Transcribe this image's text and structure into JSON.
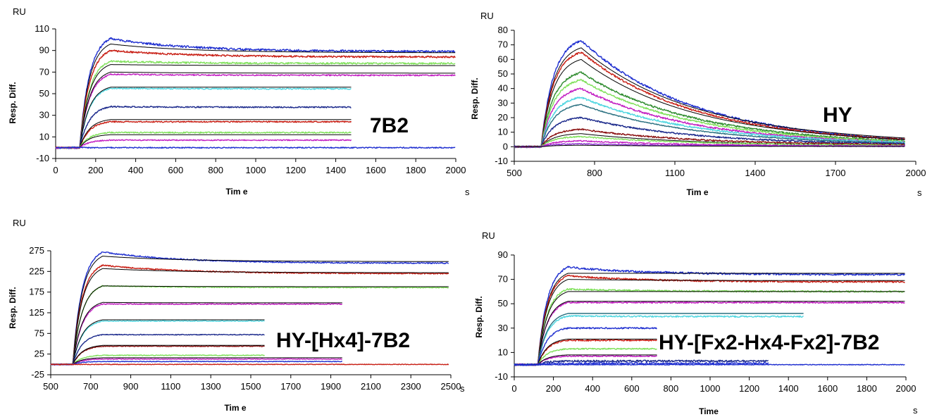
{
  "colors": {
    "blue": "#1f2fd0",
    "red": "#c81e14",
    "green": "#2e8b2e",
    "lime": "#7fe05a",
    "magenta": "#c21fc2",
    "cyan": "#4fd6e0",
    "navy": "#1c2a8c",
    "darkred": "#8a1010",
    "teal": "#2a7080",
    "violet": "#8a2ad0",
    "black": "#000000"
  },
  "chart_data": [
    {
      "type": "line",
      "title": "7B2",
      "xlabel": "Tim e",
      "ylabel": "Resp. Diff.",
      "yunit": "RU",
      "xunit": "s",
      "xlim": [
        0,
        2000
      ],
      "ylim": [
        -10,
        110
      ],
      "xticks": [
        0,
        200,
        400,
        600,
        800,
        1000,
        1200,
        1400,
        1600,
        1800,
        2000
      ],
      "yticks": [
        -10,
        10,
        30,
        50,
        70,
        90,
        110
      ],
      "inj_start": 120,
      "inj_end": 275,
      "baseline_start": 0,
      "series": [
        {
          "color": "#1f2fd0",
          "peak": 101,
          "end": 89,
          "end_x": 2000,
          "noise": 1.0
        },
        {
          "color": "#000000",
          "peak": 96,
          "end": 88,
          "end_x": 2000,
          "noise": 0
        },
        {
          "color": "#c81e14",
          "peak": 90,
          "end": 84,
          "end_x": 2000,
          "noise": 0.8
        },
        {
          "color": "#7fe05a",
          "peak": 80,
          "end": 78,
          "end_x": 2000,
          "noise": 0.8
        },
        {
          "color": "#000000",
          "peak": 77,
          "end": 76,
          "end_x": 2000,
          "noise": 0
        },
        {
          "color": "#c21fc2",
          "peak": 68,
          "end": 67,
          "end_x": 2000,
          "noise": 0.6
        },
        {
          "color": "#000000",
          "peak": 70,
          "end": 69,
          "end_x": 2000,
          "noise": 0
        },
        {
          "color": "#4fd6e0",
          "peak": 55,
          "end": 54.5,
          "end_x": 1480,
          "noise": 0.6
        },
        {
          "color": "#000000",
          "peak": 56,
          "end": 56,
          "end_x": 1480,
          "noise": 0
        },
        {
          "color": "#1c2a8c",
          "peak": 38,
          "end": 37.5,
          "end_x": 1480,
          "noise": 0.6
        },
        {
          "color": "#c81e14",
          "peak": 24,
          "end": 24,
          "end_x": 1480,
          "noise": 0.6
        },
        {
          "color": "#000000",
          "peak": 26,
          "end": 26,
          "end_x": 1480,
          "noise": 0
        },
        {
          "color": "#7fe05a",
          "peak": 14,
          "end": 14,
          "end_x": 1480,
          "noise": 0.6
        },
        {
          "color": "#000000",
          "peak": 12,
          "end": 12,
          "end_x": 1480,
          "noise": 0
        },
        {
          "color": "#c21fc2",
          "peak": 7,
          "end": 7,
          "end_x": 1480,
          "noise": 0.5
        },
        {
          "color": "#1f2fd0",
          "peak": 0,
          "end": 0,
          "end_x": 2000,
          "noise": 0.5
        }
      ]
    },
    {
      "type": "line",
      "title": "HY",
      "xlabel": "Tim e",
      "ylabel": "Resp. Diff.",
      "yunit": "RU",
      "xunit": "s",
      "xlim": [
        500,
        2000
      ],
      "ylim": [
        -10,
        80
      ],
      "xticks": [
        500,
        800,
        1100,
        1400,
        1700,
        2000
      ],
      "yticks": [
        -10,
        0,
        10,
        20,
        30,
        40,
        50,
        60,
        70,
        80
      ],
      "inj_start": 600,
      "inj_end": 750,
      "baseline_start": 500,
      "series": [
        {
          "color": "#1f2fd0",
          "peak": 73,
          "end": 5,
          "end_x": 1960,
          "noise": 0.7
        },
        {
          "color": "#000000",
          "peak": 68,
          "end": 6,
          "end_x": 1960,
          "noise": 0
        },
        {
          "color": "#c81e14",
          "peak": 65,
          "end": 5,
          "end_x": 1960,
          "noise": 0.6
        },
        {
          "color": "#000000",
          "peak": 60,
          "end": 5,
          "end_x": 1960,
          "noise": 0
        },
        {
          "color": "#2e8b2e",
          "peak": 51,
          "end": 4,
          "end_x": 1960,
          "noise": 0.6
        },
        {
          "color": "#7fe05a",
          "peak": 46,
          "end": 3.5,
          "end_x": 1960,
          "noise": 0.6
        },
        {
          "color": "#c21fc2",
          "peak": 40,
          "end": 3,
          "end_x": 1960,
          "noise": 0.6
        },
        {
          "color": "#4fd6e0",
          "peak": 34,
          "end": 3,
          "end_x": 1960,
          "noise": 0.6
        },
        {
          "color": "#2a7080",
          "peak": 29,
          "end": 2.5,
          "end_x": 1960,
          "noise": 0.3
        },
        {
          "color": "#1c2a8c",
          "peak": 20,
          "end": 2,
          "end_x": 1960,
          "noise": 0.5
        },
        {
          "color": "#8a1010",
          "peak": 12,
          "end": 1.5,
          "end_x": 1960,
          "noise": 0.5
        },
        {
          "color": "#000000",
          "peak": 9,
          "end": 1,
          "end_x": 1960,
          "noise": 0
        },
        {
          "color": "#7fe05a",
          "peak": 7,
          "end": 1,
          "end_x": 1960,
          "noise": 0.4
        },
        {
          "color": "#c21fc2",
          "peak": 4,
          "end": 0.5,
          "end_x": 1960,
          "noise": 0.4
        },
        {
          "color": "#8a2ad0",
          "peak": 2,
          "end": 0.3,
          "end_x": 1960,
          "noise": 0.3
        },
        {
          "color": "#000000",
          "peak": 1,
          "end": 0.2,
          "end_x": 1960,
          "noise": 0
        }
      ]
    },
    {
      "type": "line",
      "title": "HY-[Hx4]-7B2",
      "xlabel": "Tim e",
      "ylabel": "Resp. Diff.",
      "yunit": "RU",
      "xunit": "s",
      "xlim": [
        500,
        2500
      ],
      "ylim": [
        -25,
        275
      ],
      "xticks": [
        500,
        700,
        900,
        1100,
        1300,
        1500,
        1700,
        1900,
        2100,
        2300,
        2500
      ],
      "yticks": [
        -25,
        25,
        75,
        125,
        175,
        225,
        275
      ],
      "inj_start": 610,
      "inj_end": 760,
      "baseline_start": 500,
      "series": [
        {
          "color": "#1f2fd0",
          "peak": 272,
          "end": 245,
          "end_x": 2490,
          "noise": 1.5
        },
        {
          "color": "#000000",
          "peak": 262,
          "end": 249,
          "end_x": 2490,
          "noise": 0
        },
        {
          "color": "#c81e14",
          "peak": 240,
          "end": 220,
          "end_x": 2490,
          "noise": 1.5
        },
        {
          "color": "#000000",
          "peak": 232,
          "end": 222,
          "end_x": 2490,
          "noise": 0
        },
        {
          "color": "#7fe05a",
          "peak": 190,
          "end": 186,
          "end_x": 2490,
          "noise": 1.2
        },
        {
          "color": "#000000",
          "peak": 190,
          "end": 188,
          "end_x": 2490,
          "noise": 0
        },
        {
          "color": "#c21fc2",
          "peak": 146,
          "end": 146,
          "end_x": 1960,
          "noise": 1.2
        },
        {
          "color": "#000000",
          "peak": 150,
          "end": 149,
          "end_x": 1960,
          "noise": 0
        },
        {
          "color": "#4fd6e0",
          "peak": 105,
          "end": 105,
          "end_x": 1570,
          "noise": 1
        },
        {
          "color": "#000000",
          "peak": 108,
          "end": 108,
          "end_x": 1570,
          "noise": 0
        },
        {
          "color": "#1c2a8c",
          "peak": 72,
          "end": 72,
          "end_x": 1570,
          "noise": 1
        },
        {
          "color": "#8a1010",
          "peak": 44,
          "end": 44,
          "end_x": 1570,
          "noise": 1
        },
        {
          "color": "#000000",
          "peak": 46,
          "end": 46,
          "end_x": 1570,
          "noise": 0
        },
        {
          "color": "#7fe05a",
          "peak": 22,
          "end": 22,
          "end_x": 1570,
          "noise": 1
        },
        {
          "color": "#c21fc2",
          "peak": 13,
          "end": 13,
          "end_x": 1960,
          "noise": 0.8
        },
        {
          "color": "#000000",
          "peak": 16,
          "end": 16,
          "end_x": 1960,
          "noise": 0
        },
        {
          "color": "#1f2fd0",
          "peak": 7,
          "end": 7,
          "end_x": 1960,
          "noise": 0.8
        },
        {
          "color": "#c81e14",
          "peak": 0,
          "end": 0,
          "end_x": 2490,
          "noise": 0.8
        }
      ]
    },
    {
      "type": "line",
      "title": "HY-[Fx2-Hx4-Fx2]-7B2",
      "xlabel": "Time",
      "ylabel": "Resp. Diff.",
      "yunit": "RU",
      "xunit": "s",
      "xlim": [
        0,
        2000
      ],
      "ylim": [
        -10,
        90
      ],
      "xticks": [
        0,
        200,
        400,
        600,
        800,
        1000,
        1200,
        1400,
        1600,
        1800,
        2000
      ],
      "yticks": [
        -10,
        10,
        30,
        50,
        70,
        90
      ],
      "inj_start": 120,
      "inj_end": 275,
      "baseline_start": 0,
      "series": [
        {
          "color": "#1f2fd0",
          "peak": 80,
          "end": 74,
          "end_x": 1995,
          "noise": 0.8
        },
        {
          "color": "#000000",
          "peak": 75,
          "end": 75,
          "end_x": 1995,
          "noise": 0
        },
        {
          "color": "#c81e14",
          "peak": 73,
          "end": 68,
          "end_x": 1995,
          "noise": 0.7
        },
        {
          "color": "#000000",
          "peak": 70,
          "end": 69,
          "end_x": 1995,
          "noise": 0
        },
        {
          "color": "#7fe05a",
          "peak": 62,
          "end": 60,
          "end_x": 1995,
          "noise": 0.7
        },
        {
          "color": "#000000",
          "peak": 60,
          "end": 60,
          "end_x": 1995,
          "noise": 0
        },
        {
          "color": "#c21fc2",
          "peak": 51,
          "end": 51,
          "end_x": 1995,
          "noise": 0.6
        },
        {
          "color": "#000000",
          "peak": 52,
          "end": 52,
          "end_x": 1995,
          "noise": 0
        },
        {
          "color": "#4fd6e0",
          "peak": 40,
          "end": 39.5,
          "end_x": 1480,
          "noise": 0.6
        },
        {
          "color": "#2a7080",
          "peak": 42,
          "end": 42,
          "end_x": 1480,
          "noise": 0
        },
        {
          "color": "#1f2fd0",
          "peak": 30,
          "end": 30,
          "end_x": 730,
          "noise": 0.6
        },
        {
          "color": "#c81e14",
          "peak": 20,
          "end": 20,
          "end_x": 730,
          "noise": 0.6
        },
        {
          "color": "#000000",
          "peak": 21,
          "end": 21,
          "end_x": 730,
          "noise": 0
        },
        {
          "color": "#7fe05a",
          "peak": 13,
          "end": 13,
          "end_x": 730,
          "noise": 0.5
        },
        {
          "color": "#c21fc2",
          "peak": 7,
          "end": 7,
          "end_x": 730,
          "noise": 0.5
        },
        {
          "color": "#000000",
          "peak": 8,
          "end": 8,
          "end_x": 730,
          "noise": 0
        },
        {
          "color": "#1c2a8c",
          "peak": 3,
          "end": 3,
          "end_x": 1300,
          "noise": 0.8
        },
        {
          "color": "#1f2fd0",
          "peak": 1,
          "end": 1,
          "end_x": 1300,
          "noise": 0.8
        },
        {
          "color": "#1f2fd0",
          "peak": 0,
          "end": 0,
          "end_x": 1995,
          "noise": 0.3
        }
      ]
    }
  ]
}
